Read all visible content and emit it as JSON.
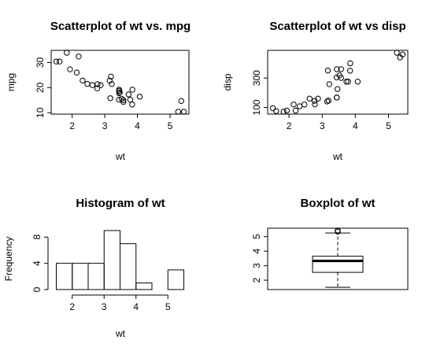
{
  "chart_data": [
    {
      "type": "scatter",
      "title": "Scatterplot of wt vs. mpg",
      "x_label": "wt",
      "y_label": "mpg",
      "x": [
        2.62,
        2.875,
        2.32,
        3.215,
        3.44,
        3.46,
        3.57,
        3.19,
        3.15,
        3.44,
        3.44,
        4.07,
        3.73,
        3.78,
        5.25,
        5.424,
        5.345,
        2.2,
        1.615,
        1.835,
        2.465,
        3.52,
        3.435,
        3.84,
        3.845,
        1.935,
        2.14,
        1.513,
        3.17,
        2.77,
        3.57,
        2.78
      ],
      "values": [
        21,
        21,
        22.8,
        21.4,
        18.7,
        18.1,
        14.3,
        24.4,
        22.8,
        19.2,
        17.8,
        16.4,
        17.3,
        15.2,
        10.4,
        10.4,
        14.7,
        32.4,
        30.4,
        33.9,
        21.5,
        15.5,
        15.2,
        13.3,
        19.2,
        27.3,
        26,
        30.4,
        15.8,
        19.7,
        15,
        21.4
      ],
      "xlim": [
        1.357,
        5.58
      ],
      "xticks": [
        2,
        3,
        4,
        5
      ],
      "ylim": [
        9.46,
        34.84
      ],
      "yticks": [
        10,
        20,
        30
      ]
    },
    {
      "type": "scatter",
      "title": "Scatterplot of wt vs disp",
      "x_label": "wt",
      "y_label": "disp",
      "x": [
        2.62,
        2.875,
        2.32,
        3.215,
        3.44,
        3.46,
        3.57,
        3.19,
        3.15,
        3.44,
        3.44,
        4.07,
        3.73,
        3.78,
        5.25,
        5.424,
        5.345,
        2.2,
        1.615,
        1.835,
        2.465,
        3.52,
        3.435,
        3.84,
        3.845,
        1.935,
        2.14,
        1.513,
        3.17,
        2.77,
        3.57,
        2.78
      ],
      "values": [
        160,
        160,
        108,
        258,
        360,
        225,
        360,
        146.7,
        140.8,
        167.6,
        167.6,
        275.8,
        275.8,
        275.8,
        472,
        460,
        440,
        78.7,
        75.7,
        71.1,
        120.1,
        318,
        304,
        350,
        400,
        79,
        120.3,
        95.1,
        351,
        145,
        301,
        121
      ],
      "xlim": [
        1.357,
        5.58
      ],
      "xticks": [
        2,
        3,
        4,
        5
      ],
      "ylim": [
        55.06,
        488.04
      ],
      "yticks": [
        100,
        300
      ]
    },
    {
      "type": "histogram",
      "title": "Histogram of wt",
      "x_label": "wt",
      "y_label": "Frequency",
      "bins": [
        1.5,
        2,
        2.5,
        3,
        3.5,
        4,
        4.5,
        5,
        5.5
      ],
      "values": [
        4,
        4,
        4,
        9,
        7,
        1,
        0,
        3
      ],
      "xlim": [
        1.34,
        5.66
      ],
      "xticks": [
        2,
        3,
        4,
        5
      ],
      "ylim": [
        0,
        9.36
      ],
      "yticks": [
        0,
        4,
        8
      ]
    },
    {
      "type": "box",
      "title": "Boxplot of wt",
      "stats": {
        "min": 1.513,
        "q1": 2.5425,
        "median": 3.325,
        "q3": 3.65,
        "max": 5.25
      },
      "outliers": [
        5.345,
        5.424
      ],
      "ylim": [
        1.357,
        5.58
      ],
      "yticks": [
        2,
        3,
        4,
        5
      ]
    }
  ]
}
